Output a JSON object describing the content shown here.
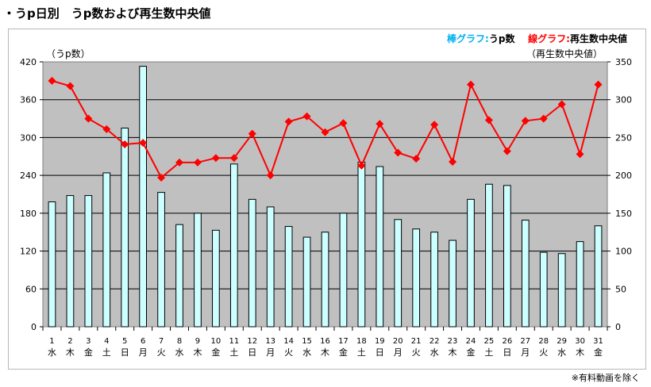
{
  "title": "・うp日別　うp数および再生数中央値",
  "legend": {
    "bar_label": "棒グラフ:",
    "bar_name": "うp数",
    "line_label": "線グラフ:",
    "line_name": "再生数中央値"
  },
  "note": "※有料動画を除く",
  "colors": {
    "plot_bg": "#c0c0c0",
    "bar_fill": "#ccffff",
    "bar_stroke": "#000000",
    "line": "#ff0000",
    "legend_bar_text": "#00b0f0",
    "legend_line_text": "#ff0000"
  },
  "chart_data": {
    "type": "bar+line",
    "y_left_label": "（うp数）",
    "y_right_label": "（再生数中央値）",
    "y_left_range": [
      0,
      420
    ],
    "y_left_ticks": [
      0,
      60,
      120,
      180,
      240,
      300,
      360,
      420
    ],
    "y_right_range": [
      0,
      350
    ],
    "y_right_ticks": [
      0,
      50,
      100,
      150,
      200,
      250,
      300,
      350
    ],
    "grid": "horizontal",
    "days": [
      "1",
      "2",
      "3",
      "4",
      "5",
      "6",
      "7",
      "8",
      "9",
      "10",
      "11",
      "12",
      "13",
      "14",
      "15",
      "16",
      "17",
      "18",
      "19",
      "20",
      "21",
      "22",
      "23",
      "24",
      "25",
      "26",
      "27",
      "28",
      "29",
      "30",
      "31"
    ],
    "weekdays": [
      "水",
      "木",
      "金",
      "土",
      "日",
      "月",
      "火",
      "水",
      "木",
      "金",
      "土",
      "日",
      "月",
      "火",
      "水",
      "木",
      "金",
      "土",
      "日",
      "月",
      "火",
      "水",
      "木",
      "金",
      "土",
      "日",
      "月",
      "火",
      "水",
      "木",
      "金"
    ],
    "series": [
      {
        "name": "うp数",
        "kind": "bar",
        "axis": "left",
        "values": [
          198,
          208,
          208,
          244,
          315,
          413,
          213,
          162,
          180,
          153,
          258,
          202,
          190,
          159,
          142,
          150,
          180,
          261,
          254,
          170,
          155,
          150,
          137,
          202,
          226,
          224,
          169,
          118,
          116,
          135,
          160
        ]
      },
      {
        "name": "再生数中央値",
        "kind": "line",
        "axis": "right",
        "values": [
          325,
          318,
          275,
          261,
          241,
          243,
          197,
          217,
          217,
          223,
          223,
          255,
          200,
          271,
          278,
          257,
          269,
          213,
          268,
          230,
          222,
          267,
          218,
          320,
          273,
          232,
          272,
          275,
          294,
          228,
          320
        ]
      }
    ]
  }
}
